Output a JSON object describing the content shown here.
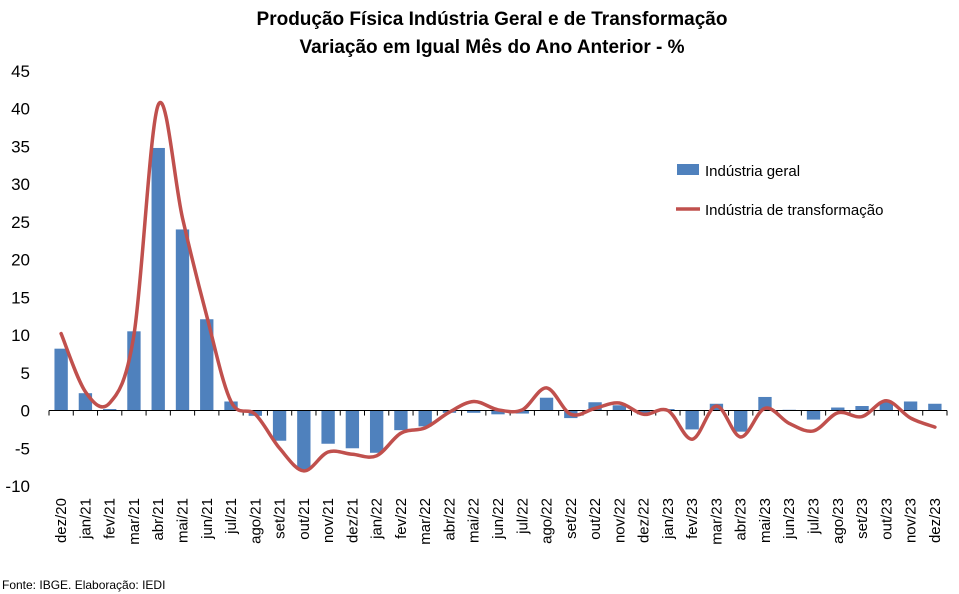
{
  "chart_data": {
    "type": "bar",
    "title": "Produção Física Indústria Geral e de Transformação",
    "subtitle": "Variação em Igual Mês do Ano Anterior - %",
    "xlabel": "",
    "ylabel": "",
    "ylim": [
      -10,
      45
    ],
    "yticks": [
      45,
      40,
      35,
      30,
      25,
      20,
      15,
      10,
      5,
      0,
      -5,
      -10
    ],
    "grid": false,
    "legend_position": "right",
    "categories": [
      "dez/20",
      "jan/21",
      "fev/21",
      "mar/21",
      "abr/21",
      "mai/21",
      "jun/21",
      "jul/21",
      "ago/21",
      "set/21",
      "out/21",
      "nov/21",
      "dez/21",
      "jan/22",
      "fev/22",
      "mar/22",
      "abr/22",
      "mai/22",
      "jun/22",
      "jul/22",
      "ago/22",
      "set/22",
      "out/22",
      "nov/22",
      "dez/22",
      "jan/23",
      "fev/23",
      "mar/23",
      "abr/23",
      "mai/23",
      "jun/23",
      "jul/23",
      "ago/23",
      "set/23",
      "out/23",
      "nov/23",
      "dez/23"
    ],
    "series": [
      {
        "name": "Indústria geral",
        "kind": "bar",
        "color": "#4f81bd",
        "values": [
          8.2,
          2.3,
          0.2,
          10.5,
          34.8,
          24.0,
          12.1,
          1.2,
          -0.7,
          -4.0,
          -7.8,
          -4.4,
          -5.0,
          -5.6,
          -2.6,
          -2.1,
          -0.3,
          -0.3,
          -0.5,
          -0.4,
          1.7,
          -1.0,
          1.1,
          0.7,
          -0.5,
          0.2,
          -2.5,
          0.9,
          -2.8,
          1.8,
          0.1,
          -1.2,
          0.4,
          0.6,
          1.2,
          1.2,
          0.9
        ]
      },
      {
        "name": "Indústria de transformação",
        "kind": "line",
        "color": "#c0504d",
        "values": [
          10.2,
          2.5,
          1.0,
          10.0,
          40.5,
          25.5,
          12.5,
          1.2,
          -0.5,
          -5.0,
          -8.0,
          -5.5,
          -5.8,
          -6.0,
          -3.0,
          -2.3,
          -0.2,
          1.2,
          0.1,
          0.1,
          3.0,
          -0.5,
          0.3,
          1.0,
          -0.5,
          0.0,
          -3.8,
          0.6,
          -3.5,
          0.3,
          -1.7,
          -2.7,
          -0.3,
          -0.8,
          1.3,
          -1.0,
          -2.2
        ]
      }
    ]
  },
  "source_note": "Fonte: IBGE. Elaboração: IEDI"
}
